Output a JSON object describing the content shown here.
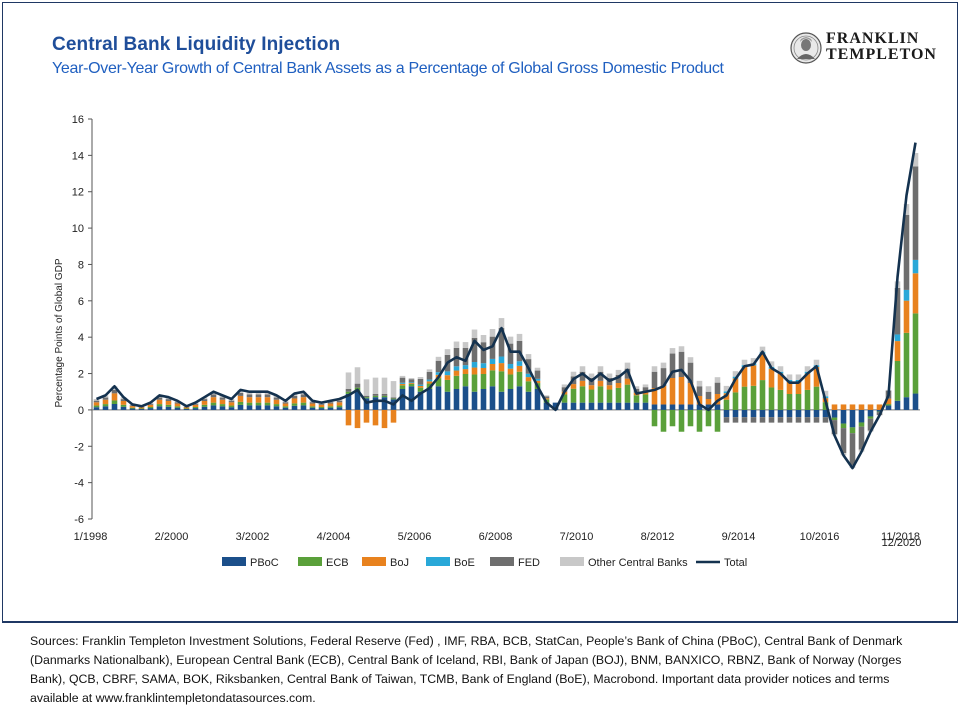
{
  "header": {
    "title": "Central Bank Liquidity  Injection",
    "subtitle": "Year-Over-Year Growth of Central Bank Assets as a Percentage of Global Gross Domestic Product"
  },
  "logo": {
    "name": "FRANKLIN TEMPLETON",
    "line1": "FRANKLIN",
    "line2": "TEMPLETON",
    "icon": "franklin-portrait-seal"
  },
  "colors": {
    "PBoC": "#1b4f8a",
    "ECB": "#5aa03a",
    "BoJ": "#e8821e",
    "BoE": "#29a8d8",
    "FED": "#6e6e6e",
    "Other Central Banks": "#c8c8c8",
    "Total": "#14324f"
  },
  "chart_data": {
    "type": "bar",
    "stacked": true,
    "ylabel": "Percentage Points of Global GDP",
    "ylim": [
      -6,
      16
    ],
    "yticks": [
      -6,
      -4,
      -2,
      0,
      2,
      4,
      6,
      8,
      10,
      12,
      14,
      16
    ],
    "xtick_labels": [
      "1/1998",
      "2/2000",
      "3/2002",
      "4/2004",
      "5/2006",
      "6/2008",
      "7/2010",
      "8/2012",
      "9/2014",
      "10/2016",
      "11/2018",
      "12/2020"
    ],
    "legend_position": "bottom",
    "frequency": "quarterly",
    "x_start": "Q1 1998",
    "x_end": "Q4 2020",
    "series": [
      {
        "name": "PBoC",
        "type": "bar"
      },
      {
        "name": "ECB",
        "type": "bar"
      },
      {
        "name": "BoJ",
        "type": "bar"
      },
      {
        "name": "BoE",
        "type": "bar"
      },
      {
        "name": "FED",
        "type": "bar"
      },
      {
        "name": "Other Central Banks",
        "type": "bar"
      },
      {
        "name": "Total",
        "type": "line",
        "values": [
          0.6,
          0.8,
          1.3,
          0.7,
          0.3,
          0.2,
          0.4,
          0.8,
          0.7,
          0.5,
          0.2,
          0.4,
          0.7,
          1.0,
          0.8,
          0.6,
          1.1,
          1.0,
          1.0,
          1.0,
          0.8,
          0.5,
          0.9,
          1.0,
          0.5,
          0.4,
          0.5,
          0.6,
          0.8,
          1.1,
          0.4,
          0.5,
          0.5,
          0.3,
          0.8,
          0.5,
          0.9,
          1.2,
          1.8,
          2.6,
          2.9,
          2.7,
          3.8,
          3.3,
          3.5,
          4.5,
          3.2,
          3.2,
          2.3,
          1.3,
          0.4,
          0.0,
          1.0,
          1.7,
          2.0,
          1.6,
          2.0,
          1.6,
          1.8,
          2.2,
          0.9,
          1.0,
          1.1,
          1.3,
          2.1,
          2.2,
          1.6,
          0.3,
          0.0,
          0.5,
          0.8,
          1.7,
          2.4,
          2.5,
          3.2,
          2.3,
          2.0,
          1.5,
          1.5,
          2.0,
          2.4,
          0.5,
          -1.4,
          -2.5,
          -3.2,
          -2.3,
          -1.2,
          -0.3,
          0.8,
          7.3,
          11.8,
          14.7
        ]
      }
    ]
  },
  "legend": [
    "PBoC",
    "ECB",
    "BoJ",
    "BoE",
    "FED",
    "Other Central Banks",
    "Total"
  ],
  "footer": {
    "sources": "Sources: Franklin Templeton Investment Solutions, Federal Reserve (Fed) , IMF, RBA, BCB, StatCan,  People’s Bank of China (PBoC), Central Bank of Denmark (Danmarks Nationalbank), European Central Bank (ECB), Central Bank of Iceland, RBI, Bank of Japan (BOJ), BNM, BANXICO,  RBNZ,  Bank of Norway (Norges Bank), QCB, CBRF, SAMA, BOK, Riksbanken, Central Bank of Taiwan, TCMB, Bank of England (BoE), Macrobond. Important data provider notices and terms available at www.franklintempletondatasources.com."
  }
}
